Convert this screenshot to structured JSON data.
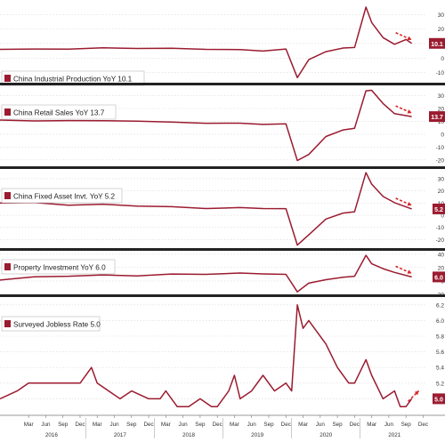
{
  "colors": {
    "series": "#9b1b30",
    "separator": "#222222",
    "grid": "#d9d9d9",
    "axis_text": "#333333",
    "arrow": "#d62728",
    "badge_text": "#ffffff"
  },
  "x_axis": {
    "month_ticks": [
      {
        "label": "Mar",
        "t": 2016.167
      },
      {
        "label": "Jun",
        "t": 2016.417
      },
      {
        "label": "Sep",
        "t": 2016.667
      },
      {
        "label": "Dec",
        "t": 2016.917
      },
      {
        "label": "Mar",
        "t": 2017.167
      },
      {
        "label": "Jun",
        "t": 2017.417
      },
      {
        "label": "Sep",
        "t": 2017.667
      },
      {
        "label": "Dec",
        "t": 2017.917
      },
      {
        "label": "Mar",
        "t": 2018.167
      },
      {
        "label": "Jun",
        "t": 2018.417
      },
      {
        "label": "Sep",
        "t": 2018.667
      },
      {
        "label": "Dec",
        "t": 2018.917
      },
      {
        "label": "Mar",
        "t": 2019.167
      },
      {
        "label": "Jun",
        "t": 2019.417
      },
      {
        "label": "Sep",
        "t": 2019.667
      },
      {
        "label": "Dec",
        "t": 2019.917
      },
      {
        "label": "Mar",
        "t": 2020.167
      },
      {
        "label": "Jun",
        "t": 2020.417
      },
      {
        "label": "Sep",
        "t": 2020.667
      },
      {
        "label": "Dec",
        "t": 2020.917
      },
      {
        "label": "Mar",
        "t": 2021.167
      },
      {
        "label": "Jun",
        "t": 2021.417
      },
      {
        "label": "Sep",
        "t": 2021.667
      },
      {
        "label": "Dec",
        "t": 2021.917
      }
    ],
    "year_labels": [
      {
        "label": "2016",
        "t": 2016.5
      },
      {
        "label": "2017",
        "t": 2017.5
      },
      {
        "label": "2018",
        "t": 2018.5
      },
      {
        "label": "2019",
        "t": 2019.5
      },
      {
        "label": "2020",
        "t": 2020.5
      },
      {
        "label": "2021",
        "t": 2021.5
      }
    ]
  },
  "chart_data": [
    {
      "type": "line",
      "title": "China Industrial Production YoY 10.1",
      "last_value_label": "10.1",
      "ylim": [
        -17,
        40
      ],
      "y_ticks": [
        "30",
        "20",
        "10",
        "0",
        "-10"
      ],
      "y_tick_values": [
        30,
        20,
        10,
        0,
        -10
      ],
      "grid": true,
      "legend": "bottom-left",
      "trend_arrow": "down",
      "series": [
        {
          "points": [
            [
              2015.75,
              6.0
            ],
            [
              2016.25,
              6.2
            ],
            [
              2016.75,
              6.1
            ],
            [
              2017.25,
              7.0
            ],
            [
              2017.75,
              6.6
            ],
            [
              2018.25,
              6.8
            ],
            [
              2018.75,
              6.0
            ],
            [
              2019.25,
              5.8
            ],
            [
              2019.583,
              4.8
            ],
            [
              2019.917,
              6.2
            ],
            [
              2020.083,
              -13.5
            ],
            [
              2020.25,
              -1.1
            ],
            [
              2020.5,
              4.4
            ],
            [
              2020.75,
              6.9
            ],
            [
              2020.917,
              7.3
            ],
            [
              2021.083,
              35.1
            ],
            [
              2021.167,
              24.5
            ],
            [
              2021.333,
              14.1
            ],
            [
              2021.5,
              9.5
            ],
            [
              2021.667,
              12.8
            ],
            [
              2021.75,
              10.1
            ]
          ]
        }
      ]
    },
    {
      "type": "line",
      "title": "China Retail Sales YoY 13.7",
      "last_value_label": "13.7",
      "ylim": [
        -25,
        38
      ],
      "y_ticks": [
        "30",
        "20",
        "10",
        "0",
        "-10",
        "-20"
      ],
      "y_tick_values": [
        30,
        20,
        10,
        0,
        -10,
        -20
      ],
      "grid": true,
      "legend": "top-left",
      "trend_arrow": "down",
      "series": [
        {
          "points": [
            [
              2015.75,
              11.0
            ],
            [
              2016.25,
              10.3
            ],
            [
              2016.75,
              10.6
            ],
            [
              2017.25,
              10.5
            ],
            [
              2017.75,
              10.2
            ],
            [
              2018.25,
              9.5
            ],
            [
              2018.75,
              8.5
            ],
            [
              2019.25,
              8.6
            ],
            [
              2019.583,
              7.6
            ],
            [
              2019.917,
              8.0
            ],
            [
              2020.083,
              -20.5
            ],
            [
              2020.25,
              -15.8
            ],
            [
              2020.5,
              -1.8
            ],
            [
              2020.75,
              3.3
            ],
            [
              2020.917,
              4.6
            ],
            [
              2021.083,
              33.8
            ],
            [
              2021.167,
              34.2
            ],
            [
              2021.333,
              23.9
            ],
            [
              2021.5,
              16.0
            ],
            [
              2021.75,
              13.7
            ]
          ]
        }
      ]
    },
    {
      "type": "line",
      "title": "China Fixed Asset Invt. YoY 5.2",
      "last_value_label": "5.2",
      "ylim": [
        -27,
        38
      ],
      "y_ticks": [
        "30",
        "20",
        "10",
        "0",
        "-10",
        "-20"
      ],
      "y_tick_values": [
        30,
        20,
        10,
        0,
        -10,
        -20
      ],
      "grid": true,
      "legend": "top-left",
      "trend_arrow": "down",
      "series": [
        {
          "points": [
            [
              2015.75,
              10.0
            ],
            [
              2016.25,
              10.5
            ],
            [
              2016.75,
              8.2
            ],
            [
              2017.25,
              9.1
            ],
            [
              2017.75,
              7.5
            ],
            [
              2018.25,
              7.0
            ],
            [
              2018.75,
              5.5
            ],
            [
              2019.25,
              6.3
            ],
            [
              2019.583,
              5.5
            ],
            [
              2019.917,
              5.4
            ],
            [
              2020.083,
              -24.5
            ],
            [
              2020.25,
              -16.1
            ],
            [
              2020.5,
              -3.1
            ],
            [
              2020.75,
              1.8
            ],
            [
              2020.917,
              2.9
            ],
            [
              2021.083,
              35.0
            ],
            [
              2021.167,
              25.6
            ],
            [
              2021.333,
              15.4
            ],
            [
              2021.5,
              10.3
            ],
            [
              2021.75,
              5.2
            ]
          ]
        }
      ]
    },
    {
      "type": "line",
      "title": "Property Investment YoY 6.0",
      "last_value_label": "6.0",
      "ylim": [
        -20,
        45
      ],
      "y_ticks": [
        "40",
        "20",
        "0",
        "-20"
      ],
      "y_tick_values": [
        40,
        20,
        0,
        -20
      ],
      "grid": true,
      "legend": "top-left",
      "trend_arrow": "down",
      "series": [
        {
          "points": [
            [
              2015.75,
              1.3
            ],
            [
              2016.25,
              6.2
            ],
            [
              2016.75,
              7.0
            ],
            [
              2017.25,
              9.1
            ],
            [
              2017.75,
              7.5
            ],
            [
              2018.25,
              10.4
            ],
            [
              2018.75,
              9.9
            ],
            [
              2019.25,
              11.9
            ],
            [
              2019.583,
              10.5
            ],
            [
              2019.917,
              9.9
            ],
            [
              2020.083,
              -16.3
            ],
            [
              2020.25,
              -3.3
            ],
            [
              2020.5,
              1.9
            ],
            [
              2020.75,
              5.6
            ],
            [
              2020.917,
              7.0
            ],
            [
              2021.083,
              38.3
            ],
            [
              2021.167,
              25.6
            ],
            [
              2021.333,
              18.3
            ],
            [
              2021.5,
              12.7
            ],
            [
              2021.75,
              6.0
            ]
          ]
        }
      ]
    },
    {
      "type": "line",
      "title": "Surveyed Jobless Rate 5.0",
      "last_value_label": "5.0",
      "ylim": [
        4.8,
        6.3
      ],
      "y_ticks": [
        "6.2",
        "6.0",
        "5.8",
        "5.6",
        "5.4",
        "5.2",
        "5.0"
      ],
      "y_tick_values": [
        6.2,
        6.0,
        5.8,
        5.6,
        5.4,
        5.2,
        5.0
      ],
      "grid": true,
      "legend": "top-left",
      "trend_arrow": "up",
      "series": [
        {
          "points": [
            [
              2015.75,
              5.0
            ],
            [
              2016.0,
              5.1
            ],
            [
              2016.167,
              5.2
            ],
            [
              2016.5,
              5.2
            ],
            [
              2016.75,
              5.2
            ],
            [
              2016.917,
              5.2
            ],
            [
              2017.083,
              5.4
            ],
            [
              2017.167,
              5.2
            ],
            [
              2017.5,
              5.0
            ],
            [
              2017.667,
              5.1
            ],
            [
              2017.917,
              5.0
            ],
            [
              2018.083,
              5.0
            ],
            [
              2018.167,
              5.1
            ],
            [
              2018.333,
              4.9
            ],
            [
              2018.5,
              4.9
            ],
            [
              2018.667,
              5.0
            ],
            [
              2018.833,
              4.9
            ],
            [
              2018.917,
              4.9
            ],
            [
              2019.083,
              5.1
            ],
            [
              2019.167,
              5.3
            ],
            [
              2019.25,
              5.0
            ],
            [
              2019.417,
              5.1
            ],
            [
              2019.583,
              5.3
            ],
            [
              2019.75,
              5.1
            ],
            [
              2019.917,
              5.2
            ],
            [
              2020.0,
              5.1
            ],
            [
              2020.083,
              6.2
            ],
            [
              2020.167,
              5.9
            ],
            [
              2020.25,
              6.0
            ],
            [
              2020.333,
              5.9
            ],
            [
              2020.5,
              5.7
            ],
            [
              2020.667,
              5.4
            ],
            [
              2020.833,
              5.2
            ],
            [
              2020.917,
              5.2
            ],
            [
              2021.083,
              5.5
            ],
            [
              2021.167,
              5.3
            ],
            [
              2021.333,
              5.0
            ],
            [
              2021.5,
              5.1
            ],
            [
              2021.583,
              4.9
            ],
            [
              2021.667,
              4.9
            ],
            [
              2021.75,
              5.0
            ]
          ]
        }
      ]
    }
  ]
}
